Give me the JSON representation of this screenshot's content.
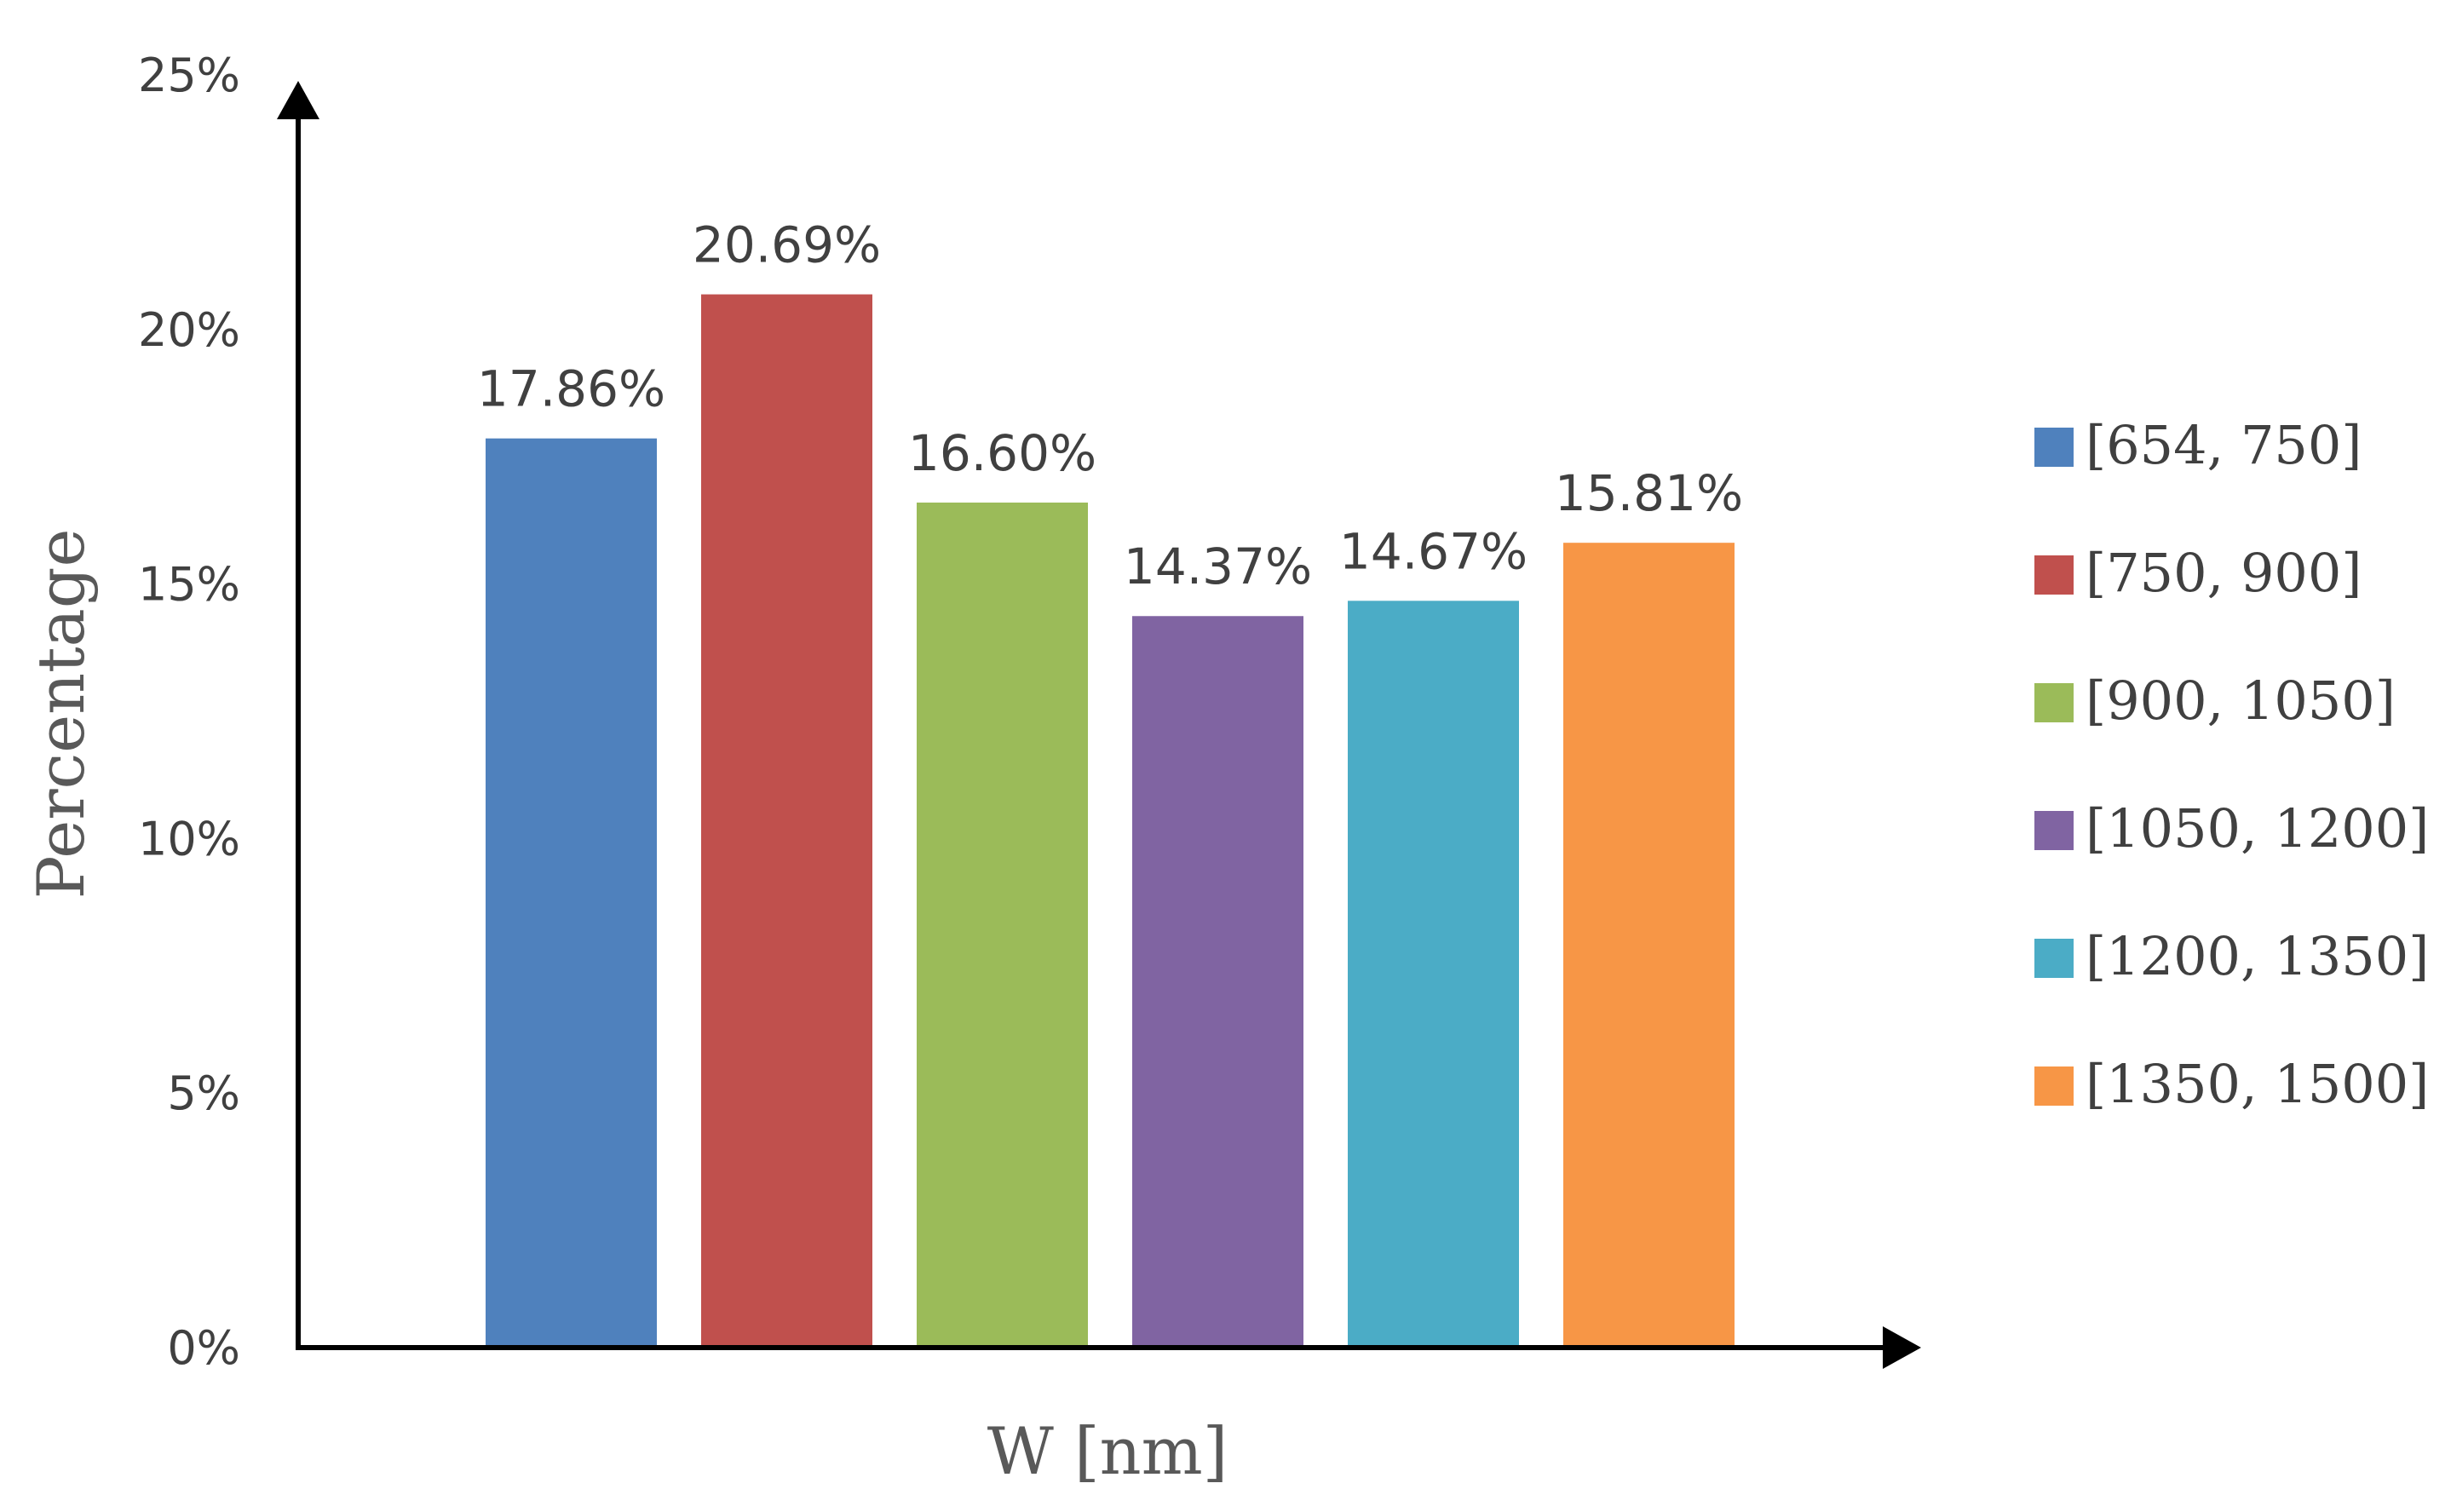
{
  "chart_data": {
    "type": "bar",
    "categories": [
      "[654, 750]",
      "[750, 900]",
      "[900, 1050]",
      "[1050, 1200]",
      "[1200, 1350]",
      "[1350, 1500]"
    ],
    "values": [
      17.86,
      20.69,
      16.6,
      14.37,
      14.67,
      15.81
    ],
    "data_labels": [
      "17.86%",
      "20.69%",
      "16.60%",
      "14.37%",
      "14.67%",
      "15.81%"
    ],
    "colors": [
      "#4F81BD",
      "#C0504D",
      "#9BBB59",
      "#8064A2",
      "#4BACC6",
      "#F79646"
    ],
    "xlabel": "W [nm]",
    "ylabel": "Percentage",
    "ylim": [
      0,
      25
    ],
    "yticks": [
      0,
      5,
      10,
      15,
      20,
      25
    ],
    "ytick_labels": [
      "0%",
      "5%",
      "10%",
      "15%",
      "20%",
      "25%"
    ],
    "grid": false,
    "legend": {
      "position": "right",
      "entries": [
        "[654, 750]",
        "[750, 900]",
        "[900, 1050]",
        "[1050, 1200]",
        "[1200, 1350]",
        "[1350, 1500]"
      ]
    }
  }
}
